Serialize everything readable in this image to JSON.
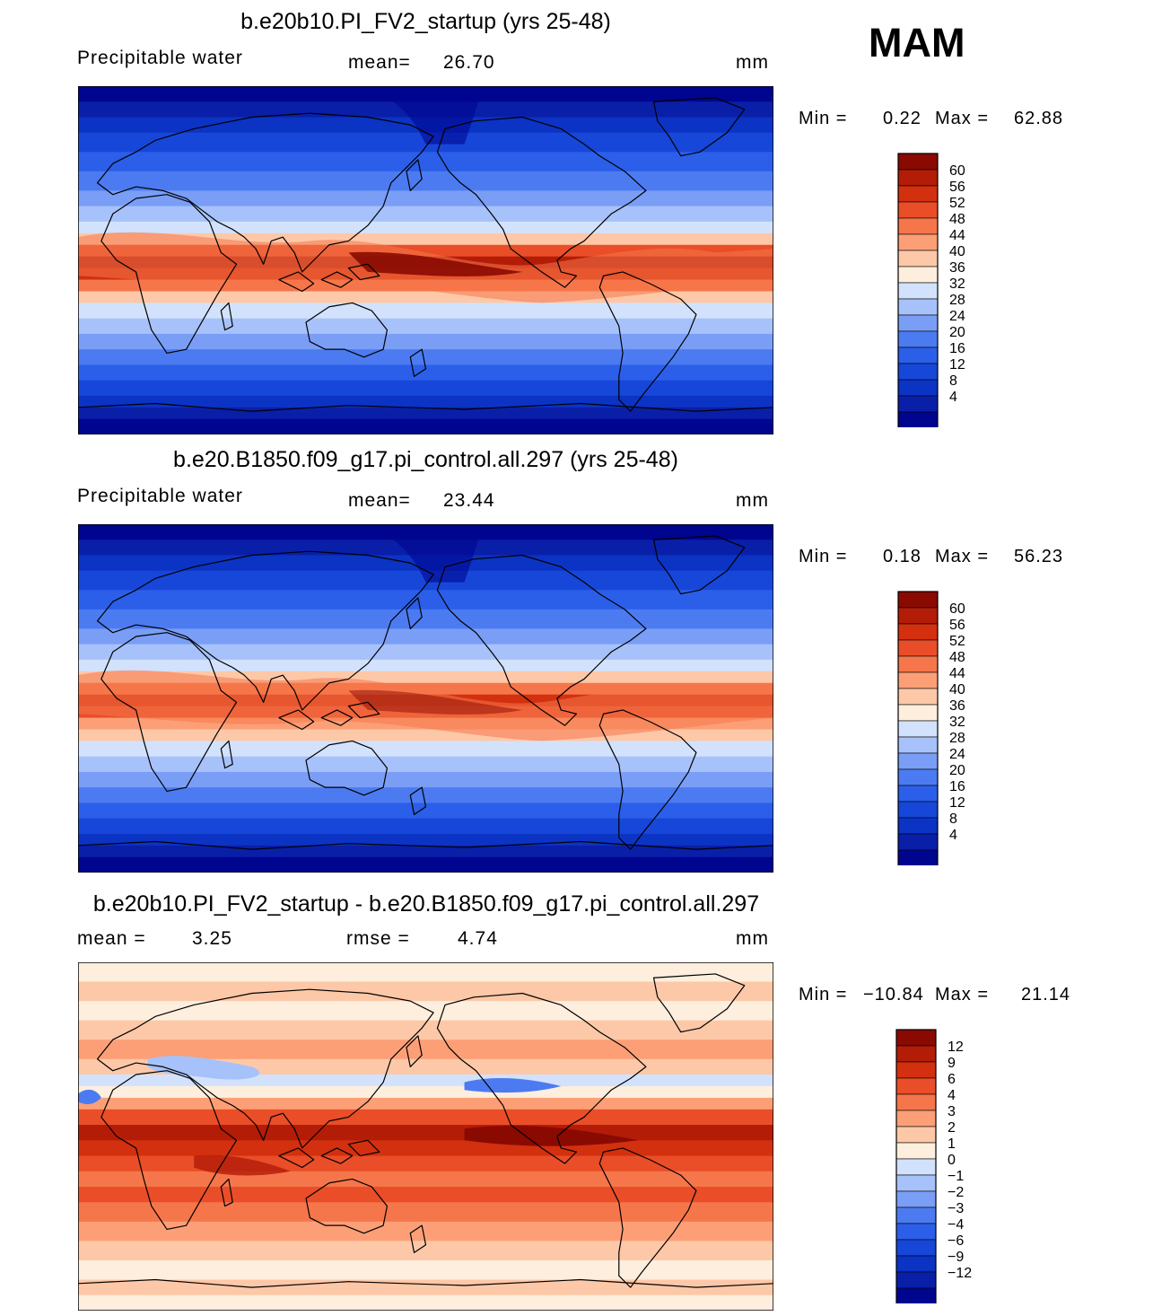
{
  "season": "MAM",
  "colors": {
    "precip": [
      "#00058f",
      "#0a1fa8",
      "#0b33c4",
      "#1747d9",
      "#2b5fe9",
      "#4c7bf1",
      "#7a9ef6",
      "#a7c2fa",
      "#d2e2fc",
      "#fdeedd",
      "#fdc8a8",
      "#fc9f77",
      "#f6764b",
      "#e94e28",
      "#d3300f",
      "#b31c07",
      "#8a0a02"
    ],
    "diff": [
      "#00058f",
      "#0a1fa8",
      "#0b33c4",
      "#1747d9",
      "#2b5fe9",
      "#4c7bf1",
      "#7a9ef6",
      "#a7c2fa",
      "#d2e2fc",
      "#fdeedd",
      "#fdc8a8",
      "#fc9f77",
      "#f6764b",
      "#e94e28",
      "#d3300f",
      "#b31c07",
      "#8a0a02"
    ]
  },
  "panels": [
    {
      "title": "b.e20b10.PI_FV2_startup (yrs 25-48)",
      "left_label": "Precipitable  water",
      "mid_label": "mean=",
      "mid_value": "26.70",
      "units": "mm",
      "min_label": "Min  =",
      "min_value": "0.22",
      "max_label": "Max  =",
      "max_value": "62.88",
      "levels": [
        "60",
        "56",
        "52",
        "48",
        "44",
        "40",
        "36",
        "32",
        "28",
        "24",
        "20",
        "16",
        "12",
        "8",
        "4"
      ],
      "kind": "precip",
      "variant": 1
    },
    {
      "title": "b.e20.B1850.f09_g17.pi_control.all.297 (yrs 25-48)",
      "left_label": "Precipitable  water",
      "mid_label": "mean=",
      "mid_value": "23.44",
      "units": "mm",
      "min_label": "Min  =",
      "min_value": "0.18",
      "max_label": "Max  =",
      "max_value": "56.23",
      "levels": [
        "60",
        "56",
        "52",
        "48",
        "44",
        "40",
        "36",
        "32",
        "28",
        "24",
        "20",
        "16",
        "12",
        "8",
        "4"
      ],
      "kind": "precip",
      "variant": 2
    },
    {
      "title": "b.e20b10.PI_FV2_startup - b.e20.B1850.f09_g17.pi_control.all.297",
      "left_label": "mean  =",
      "left_value": "3.25",
      "mid_label": "rmse  =",
      "mid_value": "4.74",
      "units": "mm",
      "min_label": "Min  =",
      "min_value": "−10.84",
      "max_label": "Max  =",
      "max_value": "21.14",
      "levels": [
        "12",
        "9",
        "6",
        "4",
        "3",
        "2",
        "1",
        "0",
        "−1",
        "−2",
        "−3",
        "−4",
        "−6",
        "−9",
        "−12"
      ],
      "kind": "diff",
      "variant": 3
    }
  ]
}
